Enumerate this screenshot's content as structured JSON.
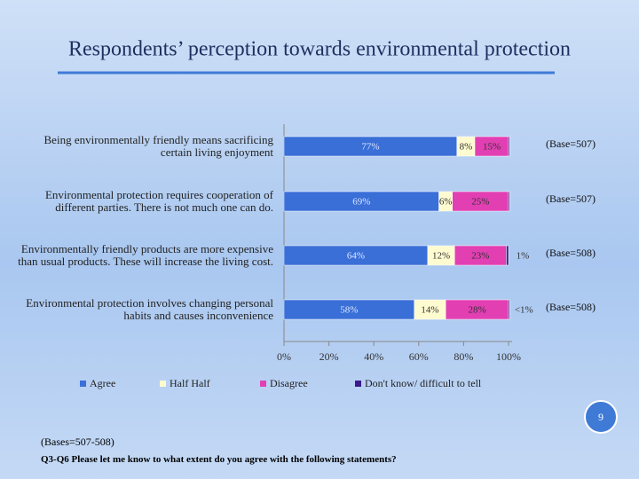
{
  "title": "Respondents’ perception towards environmental protection",
  "page_number": "9",
  "bases_note": "(Bases=507-508)",
  "question": "Q3-Q6 Please let me know to what extent do you agree with the following statements?",
  "chart_data": {
    "type": "stacked-bar-horizontal",
    "categories": [
      "Being environmentally friendly means sacrificing certain living enjoyment",
      "Environmental protection requires cooperation of different parties. There is not much one can do.",
      "Environmentally friendly products are more expensive than usual products. These will increase the living cost.",
      "Environmental protection involves changing personal habits and causes inconvenience"
    ],
    "annotations": [
      "(Base=507)",
      "(Base=507)",
      "(Base=508)",
      "(Base=508)"
    ],
    "series": [
      {
        "name": "Agree",
        "color": "#3a6fd8",
        "values": [
          77,
          69,
          64,
          58
        ],
        "value_labels": [
          "77%",
          "69%",
          "64%",
          "58%"
        ]
      },
      {
        "name": "Half Half",
        "color": "#fffbd0",
        "values": [
          8,
          6,
          12,
          14
        ],
        "value_labels": [
          "8%",
          "6%",
          "12%",
          "14%"
        ]
      },
      {
        "name": "Disagree",
        "color": "#e23fb3",
        "values": [
          15,
          25,
          23,
          28
        ],
        "value_labels": [
          "15%",
          "25%",
          "23%",
          "28%"
        ]
      },
      {
        "name": "Don't know/ difficult to tell",
        "color": "#3b1a8c",
        "values": [
          0.5,
          0.5,
          1,
          0.5
        ],
        "value_labels": [
          null,
          null,
          "1%",
          "<1%"
        ]
      }
    ],
    "xlim": [
      0,
      100
    ],
    "xticks": [
      {
        "value": 0,
        "label": "0%"
      },
      {
        "value": 20,
        "label": "20%"
      },
      {
        "value": 40,
        "label": "40%"
      },
      {
        "value": 60,
        "label": "60%"
      },
      {
        "value": 80,
        "label": "80%"
      },
      {
        "value": 100,
        "label": "100%"
      }
    ],
    "legend": "bottom"
  }
}
